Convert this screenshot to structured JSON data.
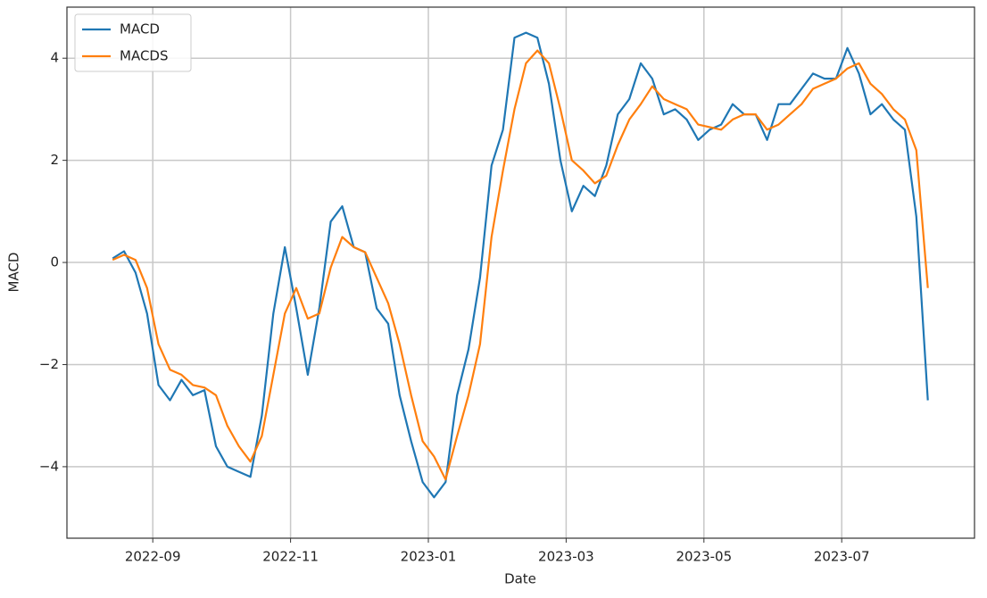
{
  "chart_data": {
    "type": "line",
    "x_label": "Date",
    "y_label": "MACD",
    "x": [
      "2022-08",
      "2022-08",
      "2022-08",
      "2022-08",
      "2022-09",
      "2022-09",
      "2022-09",
      "2022-09",
      "2022-09",
      "2022-09",
      "2022-10",
      "2022-10",
      "2022-10",
      "2022-10",
      "2022-10",
      "2022-10",
      "2022-11",
      "2022-11",
      "2022-11",
      "2022-11",
      "2022-11",
      "2022-11",
      "2022-12",
      "2022-12",
      "2022-12",
      "2022-12",
      "2022-12",
      "2022-12",
      "2023-01",
      "2023-01",
      "2023-01",
      "2023-01",
      "2023-01",
      "2023-01",
      "2023-02",
      "2023-02",
      "2023-02",
      "2023-02",
      "2023-02",
      "2023-02",
      "2023-03",
      "2023-03",
      "2023-03",
      "2023-03",
      "2023-03",
      "2023-03",
      "2023-04",
      "2023-04",
      "2023-04",
      "2023-04",
      "2023-04",
      "2023-04",
      "2023-05",
      "2023-05",
      "2023-05",
      "2023-05",
      "2023-05",
      "2023-05",
      "2023-06",
      "2023-06",
      "2023-06",
      "2023-06",
      "2023-06",
      "2023-06",
      "2023-07",
      "2023-07",
      "2023-07",
      "2023-07",
      "2023-07",
      "2023-07",
      "2023-08",
      "2023-08"
    ],
    "series": [
      {
        "name": "MACD",
        "color": "#1f77b4",
        "values": [
          0.08,
          0.22,
          -0.2,
          -1.0,
          -2.4,
          -2.7,
          -2.3,
          -2.6,
          -2.5,
          -3.6,
          -4.0,
          -4.1,
          -4.2,
          -3.0,
          -1.0,
          0.3,
          -0.9,
          -2.2,
          -0.9,
          0.8,
          1.1,
          0.3,
          0.2,
          -0.9,
          -1.2,
          -2.6,
          -3.5,
          -4.3,
          -4.6,
          -4.3,
          -2.6,
          -1.7,
          -0.3,
          1.9,
          2.6,
          4.4,
          4.5,
          4.4,
          3.5,
          2.0,
          1.0,
          1.5,
          1.3,
          1.9,
          2.9,
          3.2,
          3.9,
          3.6,
          2.9,
          3.0,
          2.8,
          2.4,
          2.6,
          2.7,
          3.1,
          2.9,
          2.9,
          2.4,
          3.1,
          3.1,
          3.4,
          3.7,
          3.6,
          3.6,
          4.2,
          3.7,
          2.9,
          3.1,
          2.8,
          2.6,
          0.9,
          -2.7
        ]
      },
      {
        "name": "MACDS",
        "color": "#ff7f0e",
        "values": [
          0.05,
          0.15,
          0.05,
          -0.5,
          -1.6,
          -2.1,
          -2.2,
          -2.4,
          -2.45,
          -2.6,
          -3.2,
          -3.6,
          -3.9,
          -3.4,
          -2.2,
          -1.0,
          -0.5,
          -1.1,
          -1.0,
          -0.1,
          0.5,
          0.3,
          0.2,
          -0.3,
          -0.8,
          -1.6,
          -2.6,
          -3.5,
          -3.8,
          -4.25,
          -3.4,
          -2.6,
          -1.6,
          0.5,
          1.8,
          3.0,
          3.9,
          4.15,
          3.9,
          3.0,
          2.0,
          1.8,
          1.55,
          1.7,
          2.3,
          2.8,
          3.1,
          3.45,
          3.2,
          3.1,
          3.0,
          2.7,
          2.65,
          2.6,
          2.8,
          2.9,
          2.9,
          2.6,
          2.7,
          2.9,
          3.1,
          3.4,
          3.5,
          3.6,
          3.8,
          3.9,
          3.5,
          3.3,
          3.0,
          2.8,
          2.2,
          -0.5
        ]
      }
    ],
    "ylim": [
      -5.4,
      5.0
    ],
    "yticks": [
      {
        "value": -4,
        "label": "−4"
      },
      {
        "value": -2,
        "label": "−2"
      },
      0,
      2,
      4
    ],
    "xticks": [
      "2022-09",
      "2022-11",
      "2023-01",
      "2023-03",
      "2023-05",
      "2023-07"
    ],
    "grid": true,
    "legend": "upper-left"
  }
}
